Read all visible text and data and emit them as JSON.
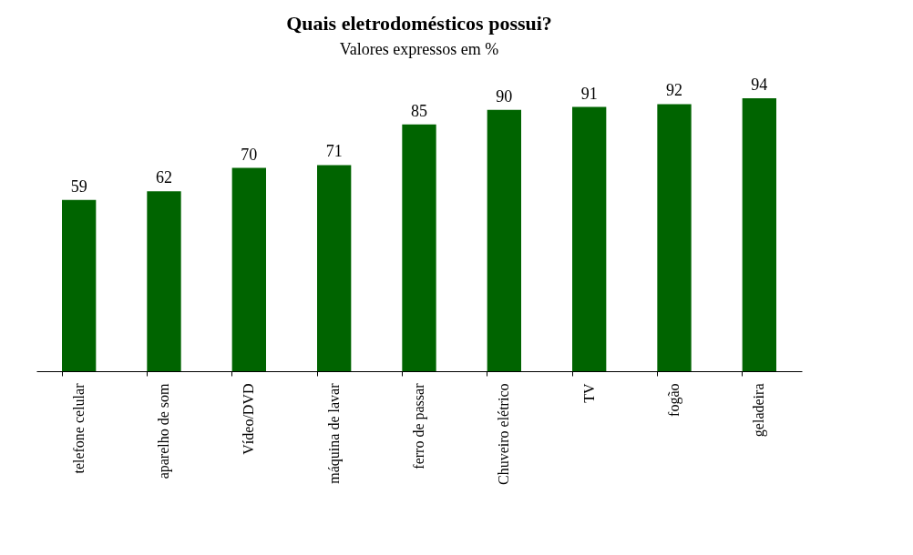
{
  "chart_data": {
    "type": "bar",
    "title": "Quais eletrodomésticos possui?",
    "subtitle": "Valores expressos em %",
    "categories": [
      "telefone celular",
      "aparelho de som",
      "Vídeo/DVD",
      "máquina de lavar",
      "ferro de passar",
      "Chuveiro elétrico",
      "TV",
      "fogão",
      "geladeira"
    ],
    "values": [
      59,
      62,
      70,
      71,
      85,
      90,
      91,
      92,
      94
    ],
    "color": "#006400",
    "data_labels": true
  }
}
